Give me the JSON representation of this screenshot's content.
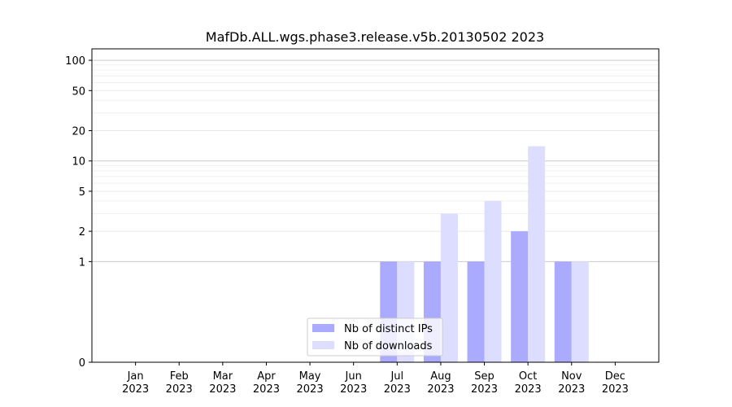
{
  "chart_data": {
    "type": "bar",
    "title": "MafDb.ALL.wgs.phase3.release.v5b.20130502 2023",
    "xlabel": "",
    "ylabel": "",
    "y_scale": "symlog",
    "ylim": [
      0,
      130
    ],
    "y_ticks": [
      0,
      1,
      2,
      5,
      10,
      20,
      50,
      100
    ],
    "grid": true,
    "legend_position": "bottom-center",
    "categories": [
      "Jan\n2023",
      "Feb\n2023",
      "Mar\n2023",
      "Apr\n2023",
      "May\n2023",
      "Jun\n2023",
      "Jul\n2023",
      "Aug\n2023",
      "Sep\n2023",
      "Oct\n2023",
      "Nov\n2023",
      "Dec\n2023"
    ],
    "series": [
      {
        "name": "Nb of distinct IPs",
        "color": "#aaaaff",
        "values": [
          0,
          0,
          0,
          0,
          0,
          0,
          1,
          1,
          1,
          2,
          1,
          0
        ]
      },
      {
        "name": "Nb of downloads",
        "color": "#ddddff",
        "values": [
          0,
          0,
          0,
          0,
          0,
          0,
          1,
          3,
          4,
          14,
          1,
          0
        ]
      }
    ]
  }
}
